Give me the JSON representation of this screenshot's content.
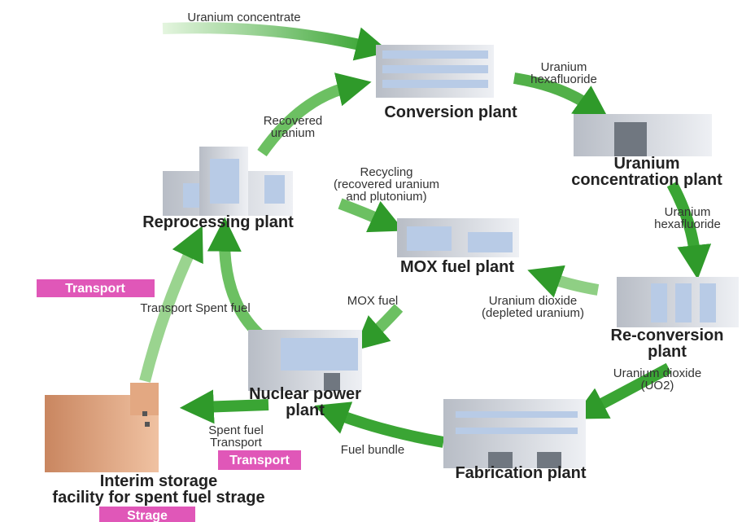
{
  "nodes": [
    {
      "label": [
        "Conversion plant"
      ]
    },
    {
      "label": [
        "Uranium",
        "concentration plant"
      ]
    },
    {
      "label": [
        "Re-conversion",
        "plant"
      ]
    },
    {
      "label": [
        "Fabrication plant"
      ]
    },
    {
      "label": [
        "Nuclear power",
        "plant"
      ]
    },
    {
      "label": [
        "Interim storage",
        "facility for spent fuel strage"
      ]
    },
    {
      "label": [
        "Reprocessing plant"
      ]
    },
    {
      "label": [
        "MOX fuel plant"
      ]
    }
  ],
  "edges": [
    {
      "label": [
        "Uranium concentrate"
      ]
    },
    {
      "label": [
        "Uranium",
        "hexafluoride"
      ]
    },
    {
      "label": [
        "Uranium",
        "hexafluoride"
      ]
    },
    {
      "label": [
        "Uranium dioxide",
        "(UO2)"
      ]
    },
    {
      "label": [
        "Fuel bundle"
      ]
    },
    {
      "label": [
        "Spent fuel",
        "Transport"
      ]
    },
    {
      "label": [
        "Transport Spent fuel"
      ]
    },
    {
      "label": [
        "Recovered",
        "uranium"
      ]
    },
    {
      "label": [
        "Recycling",
        "(recovered uranium",
        "and plutonium)"
      ]
    },
    {
      "label": [
        "Uranium dioxide",
        "(depleted uranium)"
      ]
    },
    {
      "label": [
        "MOX fuel"
      ]
    }
  ],
  "tags": [
    "Transport",
    "Transport",
    "Strage"
  ]
}
